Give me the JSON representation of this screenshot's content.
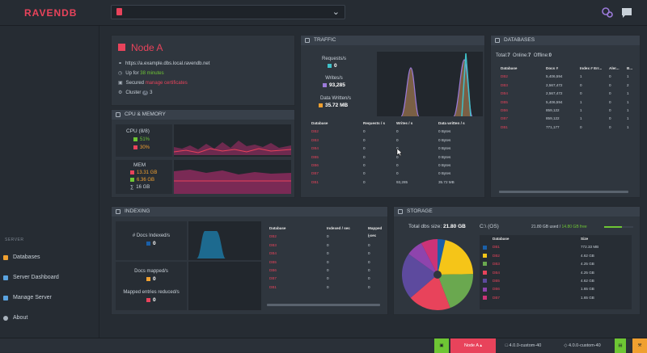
{
  "app": {
    "logo": "RAVENDB",
    "db_selector_value": ""
  },
  "sidebar": {
    "section_title": "SERVER",
    "items": [
      {
        "label": "Databases",
        "color": "#f0a030"
      },
      {
        "label": "Server Dashboard",
        "color": "#5aa3e0"
      },
      {
        "label": "Manage Server",
        "color": "#5aa3e0"
      },
      {
        "label": "About",
        "color": "#a9b2bc"
      }
    ]
  },
  "node": {
    "title": "Node A",
    "url": "https://a.example.dbs.local.ravendb.net",
    "uptime_prefix": "Up for ",
    "uptime": "38 minutes",
    "secured_prefix": "Secured ",
    "secured_link": "manage certificates",
    "cluster_label": "Cluster",
    "cluster_count": "3"
  },
  "cpu": {
    "title": "CPU & MEMORY",
    "cpu_label": "CPU (8/8)",
    "cpu_machine": "51%",
    "cpu_process": "30%",
    "mem_label": "MEM",
    "mem_used": "13.31 GB",
    "mem_process": "6.36 GB",
    "mem_total": "16 GB"
  },
  "traffic": {
    "title": "TRAFFIC",
    "requests_label": "Requests/s",
    "requests_value": "0",
    "writes_label": "Writes/s",
    "writes_value": "93,285",
    "data_label": "Data Written/s",
    "data_value": "35.72 MB",
    "headers": [
      "Database",
      "Requests / s",
      "Writes / s",
      "Data written / s"
    ],
    "rows": [
      [
        "DB2",
        "0",
        "0",
        "0 Bytes"
      ],
      [
        "DB3",
        "0",
        "0",
        "0 Bytes"
      ],
      [
        "DB4",
        "0",
        "0",
        "0 Bytes"
      ],
      [
        "DB5",
        "0",
        "0",
        "0 Bytes"
      ],
      [
        "DB6",
        "0",
        "0",
        "0 Bytes"
      ],
      [
        "DB7",
        "0",
        "0",
        "0 Bytes"
      ],
      [
        "DB1",
        "0",
        "93,285",
        "35.72 MB"
      ]
    ]
  },
  "databases": {
    "title": "DATABASES",
    "total_label": "Total:",
    "total": "7",
    "online_label": "Online:",
    "online": "7",
    "offline_label": "Offline:",
    "offline": "0",
    "headers": [
      "Database",
      "Docs #",
      "Index # Err...",
      "Aler...",
      "B..."
    ],
    "rows": [
      [
        "DB2",
        "5,406,594",
        "1",
        "0",
        "1"
      ],
      [
        "DB3",
        "2,567,472",
        "0",
        "0",
        "2"
      ],
      [
        "DB4",
        "2,567,472",
        "0",
        "0",
        "1"
      ],
      [
        "DB5",
        "5,406,594",
        "1",
        "0",
        "1"
      ],
      [
        "DB6",
        "859,122",
        "1",
        "0",
        "1"
      ],
      [
        "DB7",
        "859,122",
        "1",
        "0",
        "1"
      ],
      [
        "DB1",
        "771,177",
        "0",
        "0",
        "1"
      ]
    ]
  },
  "indexing": {
    "title": "INDEXING",
    "docs_indexed_label": "# Docs Indexed/s",
    "docs_indexed": "0",
    "docs_mapped_label": "Docs mapped/s",
    "docs_mapped": "0",
    "mapped_reduced_label": "Mapped entries reduced/s",
    "mapped_reduced": "0",
    "headers": [
      "Database",
      "Indexed / sec",
      "Mapped / sec"
    ],
    "rows": [
      [
        "DB2",
        "0",
        "0"
      ],
      [
        "DB3",
        "0",
        "0"
      ],
      [
        "DB4",
        "0",
        "0"
      ],
      [
        "DB5",
        "0",
        "0"
      ],
      [
        "DB6",
        "0",
        "0"
      ],
      [
        "DB7",
        "0",
        "0"
      ],
      [
        "DB1",
        "0",
        "0"
      ]
    ]
  },
  "storage": {
    "title": "STORAGE",
    "total_label": "Total dbs size:",
    "total": "21.80 GB",
    "drive": "C:\\ (OS)",
    "used_text": "21.80 GB used / ",
    "free_text": "14.80 GB free",
    "headers": [
      "Database",
      "Size"
    ],
    "rows": [
      {
        "name": "DB1",
        "size": "772.33 MB",
        "color": "#1a5fa8"
      },
      {
        "name": "DB2",
        "size": "4.62 GB",
        "color": "#f5c518"
      },
      {
        "name": "DB3",
        "size": "4.25 GB",
        "color": "#6aa84f"
      },
      {
        "name": "DB4",
        "size": "4.25 GB",
        "color": "#e8435b"
      },
      {
        "name": "DB5",
        "size": "4.62 GB",
        "color": "#5d4a9e"
      },
      {
        "name": "DB6",
        "size": "1.65 GB",
        "color": "#8e44ad"
      },
      {
        "name": "DB7",
        "size": "1.65 GB",
        "color": "#cc3377"
      }
    ]
  },
  "chart_data": {
    "type": "pie",
    "categories": [
      "DB1",
      "DB2",
      "DB3",
      "DB4",
      "DB5",
      "DB6",
      "DB7"
    ],
    "values": [
      0.77,
      4.62,
      4.25,
      4.25,
      4.62,
      1.65,
      1.65
    ]
  },
  "status": {
    "node": "Node A",
    "version1": "4.0.0-custom-40",
    "version2": "4.0.0-custom-40"
  },
  "colors": {
    "accent": "#e8435b",
    "panel": "#2f363e",
    "green": "#6ec634"
  }
}
